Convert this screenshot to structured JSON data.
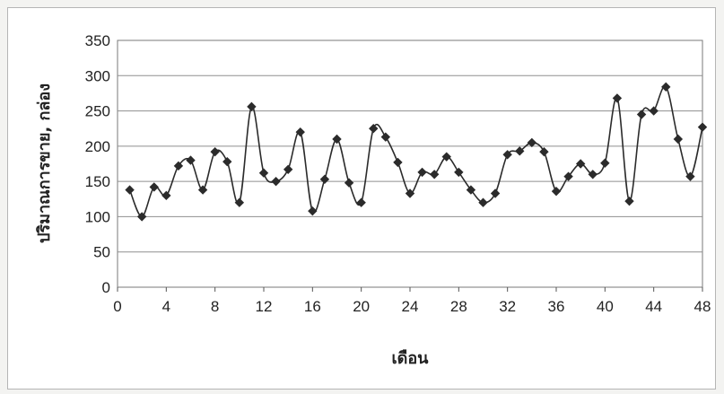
{
  "chart_data": {
    "type": "line",
    "title": "",
    "xlabel": "เดือน",
    "ylabel": "ปริมาณการขาย, กล่อง",
    "xlim": [
      0,
      48
    ],
    "ylim": [
      0,
      350
    ],
    "xticks": [
      "0",
      "4",
      "8",
      "12",
      "16",
      "20",
      "24",
      "28",
      "32",
      "36",
      "40",
      "44",
      "48"
    ],
    "yticks": [
      "0",
      "50",
      "100",
      "150",
      "200",
      "250",
      "300",
      "350"
    ],
    "grid": "horizontal",
    "legend": "none",
    "series": [
      {
        "marker": "diamond",
        "color": "#2b2b2b",
        "x": [
          1,
          2,
          3,
          4,
          5,
          6,
          7,
          8,
          9,
          10,
          11,
          12,
          13,
          14,
          15,
          16,
          17,
          18,
          19,
          20,
          21,
          22,
          23,
          24,
          25,
          26,
          27,
          28,
          29,
          30,
          31,
          32,
          33,
          34,
          35,
          36,
          37,
          38,
          39,
          40,
          41,
          42,
          43,
          44,
          45,
          46,
          47,
          48
        ],
        "values": [
          138,
          100,
          142,
          130,
          172,
          180,
          138,
          192,
          178,
          120,
          256,
          162,
          150,
          167,
          220,
          108,
          153,
          210,
          148,
          120,
          225,
          213,
          177,
          133,
          163,
          160,
          185,
          163,
          138,
          120,
          133,
          188,
          193,
          205,
          192,
          136,
          157,
          175,
          160,
          176,
          268,
          122,
          245,
          250,
          284,
          210,
          157,
          227
        ]
      }
    ]
  }
}
